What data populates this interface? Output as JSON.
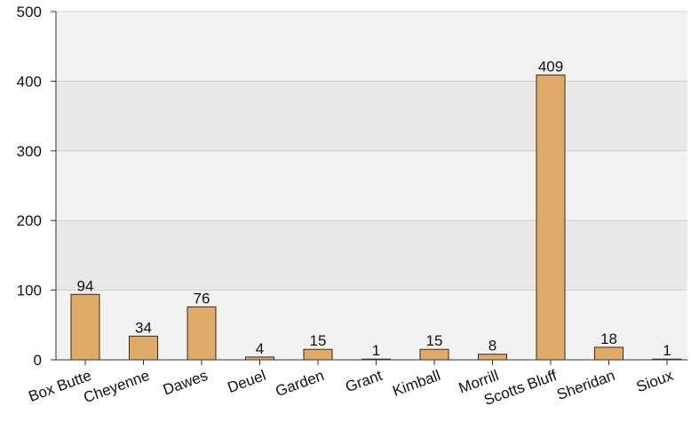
{
  "chart_data": {
    "type": "bar",
    "categories": [
      "Box Butte",
      "Cheyenne",
      "Dawes",
      "Deuel",
      "Garden",
      "Grant",
      "Kimball",
      "Morrill",
      "Scotts Bluff",
      "Sheridan",
      "Sioux"
    ],
    "values": [
      94,
      34,
      76,
      4,
      15,
      1,
      15,
      8,
      409,
      18,
      1
    ],
    "data_labels": [
      "94",
      "34",
      "76",
      "4",
      "15",
      "1",
      "15",
      "8",
      "409",
      "18",
      "1"
    ],
    "yticks": [
      "0",
      "100",
      "200",
      "300",
      "400",
      "500"
    ],
    "ylim": [
      0,
      500
    ],
    "grid": true,
    "title": "",
    "xlabel": "",
    "ylabel": ""
  },
  "colors": {
    "bar": "#e0aa69",
    "bar_stroke": "#3a2a14",
    "band_dark": "#e8e8e8",
    "band_light": "#f2f2f2",
    "grid": "#cfcfcf",
    "axis": "#333333"
  }
}
